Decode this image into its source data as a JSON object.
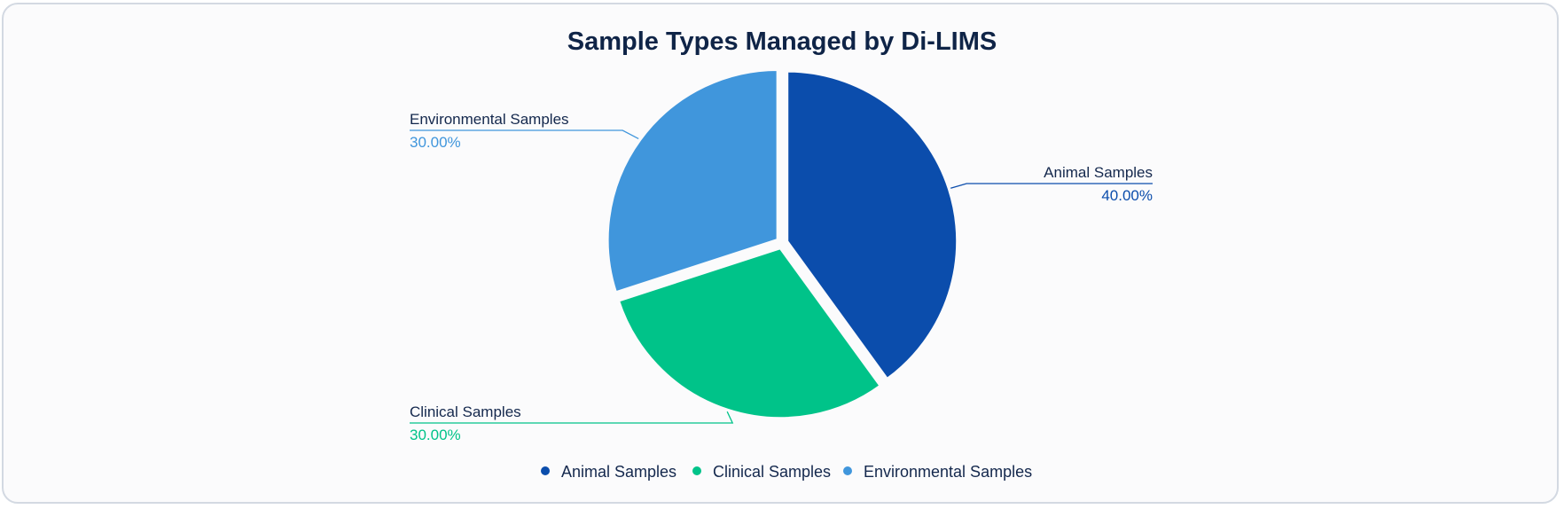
{
  "chart_data": {
    "type": "pie",
    "title": "Sample Types Managed by Di-LIMS",
    "categories": [
      "Animal Samples",
      "Clinical Samples",
      "Environmental Samples"
    ],
    "values": [
      40.0,
      30.0,
      30.0
    ],
    "value_labels": [
      "40.00%",
      "30.00%",
      "30.00%"
    ],
    "colors": [
      "#0b4dac",
      "#00c389",
      "#4096dc"
    ],
    "legend_position": "bottom-center",
    "exploded_slices": true
  }
}
